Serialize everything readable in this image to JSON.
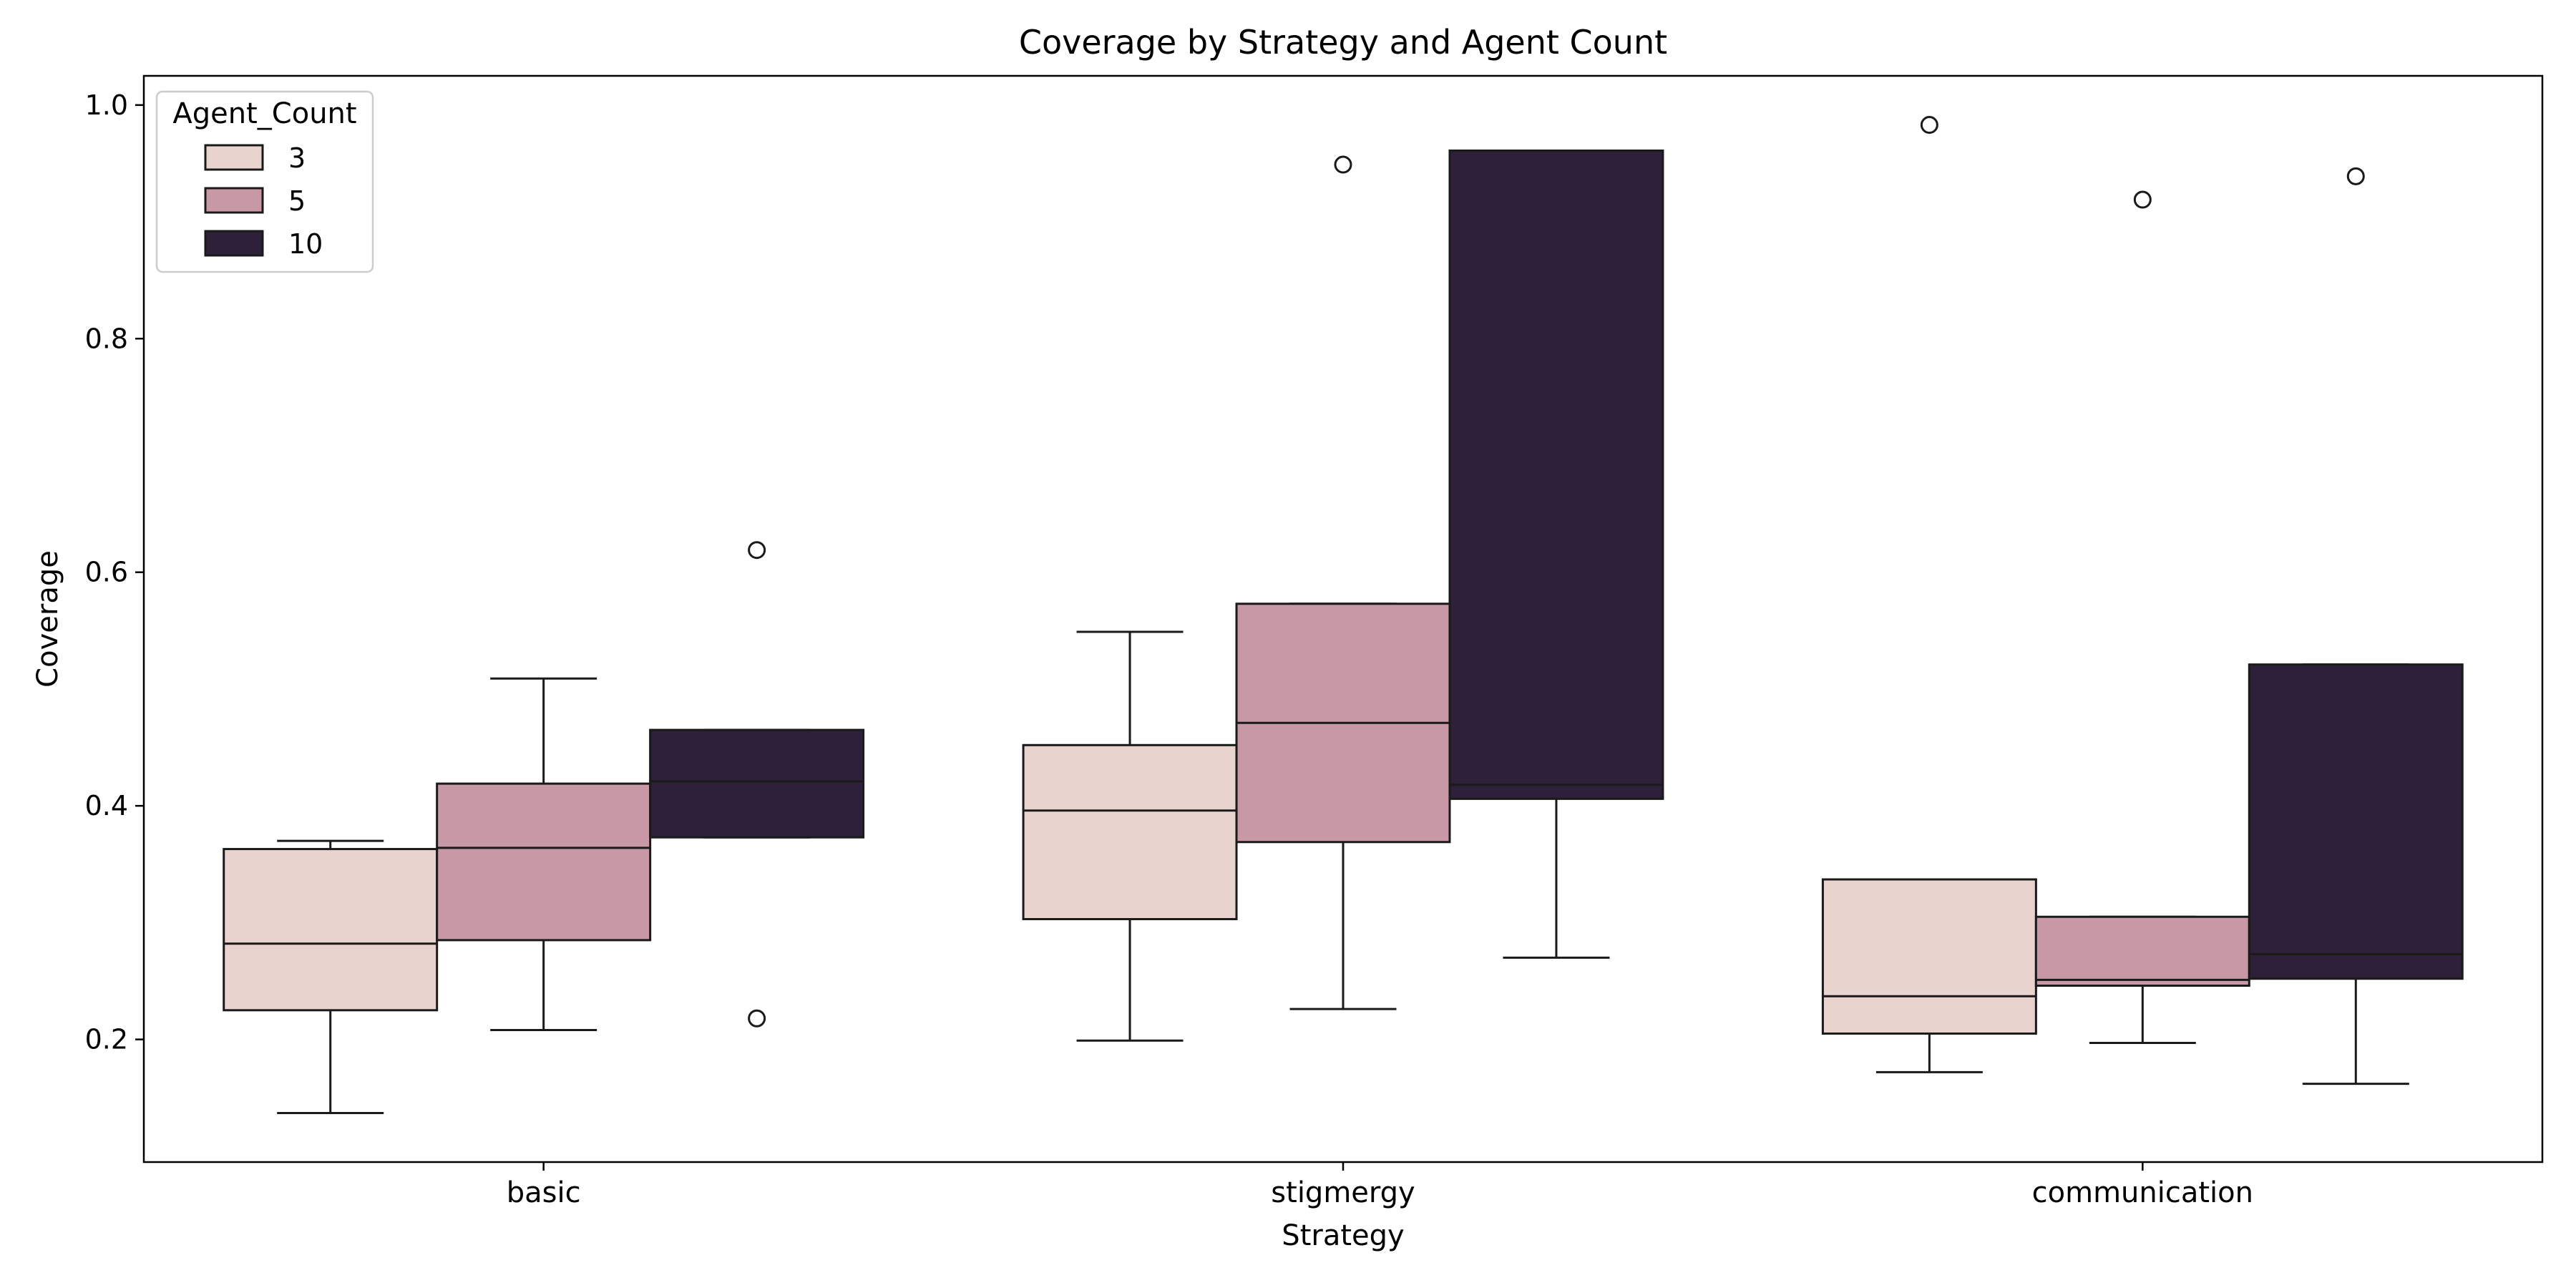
{
  "chart_data": {
    "type": "box",
    "title": "Coverage by Strategy and Agent Count",
    "xlabel": "Strategy",
    "ylabel": "Coverage",
    "categories": [
      "basic",
      "stigmergy",
      "communication"
    ],
    "ylim": [
      0.095,
      1.025
    ],
    "yticks": [
      0.2,
      0.4,
      0.6,
      0.8,
      1.0
    ],
    "ytick_labels": [
      "0.2",
      "0.4",
      "0.6",
      "0.8",
      "1.0"
    ],
    "grid": false,
    "legend": {
      "title": "Agent_Count",
      "position": "top-left"
    },
    "series": [
      {
        "name": "3",
        "color": "#e9d3cf",
        "boxes": [
          {
            "whisker_low": 0.137,
            "q1": 0.225,
            "median": 0.282,
            "q3": 0.363,
            "whisker_high": 0.37,
            "outliers": []
          },
          {
            "whisker_low": 0.199,
            "q1": 0.303,
            "median": 0.396,
            "q3": 0.452,
            "whisker_high": 0.549,
            "outliers": []
          },
          {
            "whisker_low": 0.172,
            "q1": 0.205,
            "median": 0.237,
            "q3": 0.337,
            "whisker_high": 0.337,
            "outliers": [
              0.983
            ]
          }
        ]
      },
      {
        "name": "5",
        "color": "#c998a6",
        "boxes": [
          {
            "whisker_low": 0.208,
            "q1": 0.285,
            "median": 0.364,
            "q3": 0.419,
            "whisker_high": 0.509,
            "outliers": []
          },
          {
            "whisker_low": 0.226,
            "q1": 0.369,
            "median": 0.471,
            "q3": 0.573,
            "whisker_high": 0.573,
            "outliers": [
              0.949
            ]
          },
          {
            "whisker_low": 0.197,
            "q1": 0.246,
            "median": 0.251,
            "q3": 0.305,
            "whisker_high": 0.305,
            "outliers": [
              0.919
            ]
          }
        ]
      },
      {
        "name": "10",
        "color": "#2e2039",
        "boxes": [
          {
            "whisker_low": 0.373,
            "q1": 0.373,
            "median": 0.421,
            "q3": 0.465,
            "whisker_high": 0.465,
            "outliers": [
              0.619,
              0.218
            ]
          },
          {
            "whisker_low": 0.27,
            "q1": 0.406,
            "median": 0.418,
            "q3": 0.961,
            "whisker_high": 0.961,
            "outliers": []
          },
          {
            "whisker_low": 0.162,
            "q1": 0.252,
            "median": 0.273,
            "q3": 0.521,
            "whisker_high": 0.521,
            "outliers": [
              0.939
            ]
          }
        ]
      }
    ]
  }
}
